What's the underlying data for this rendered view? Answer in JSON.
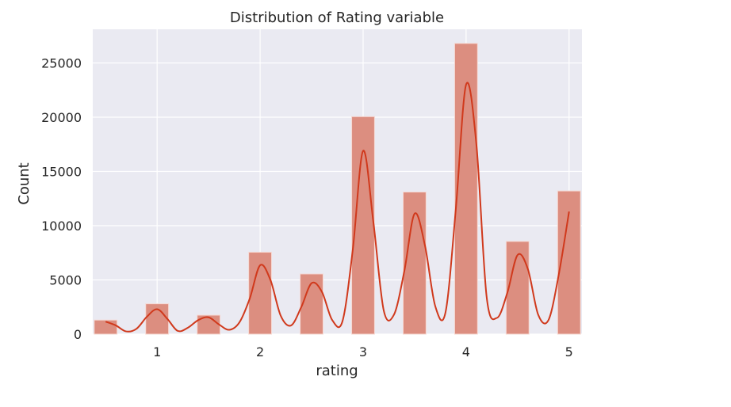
{
  "chart_data": {
    "type": "bar",
    "title": "Distribution of Rating variable",
    "xlabel": "rating",
    "ylabel": "Count",
    "xlim": [
      0.375,
      5.125
    ],
    "ylim": [
      0,
      28100
    ],
    "xticks": [
      1,
      2,
      3,
      4,
      5
    ],
    "yticks": [
      0,
      5000,
      10000,
      15000,
      20000,
      25000
    ],
    "bin_width": 0.2222,
    "bins": [
      {
        "x": 0.5,
        "count": 1300
      },
      {
        "x": 1.0,
        "count": 2800
      },
      {
        "x": 1.5,
        "count": 1750
      },
      {
        "x": 2.0,
        "count": 7550
      },
      {
        "x": 2.5,
        "count": 5550
      },
      {
        "x": 3.0,
        "count": 20050
      },
      {
        "x": 3.5,
        "count": 13100
      },
      {
        "x": 4.0,
        "count": 26800
      },
      {
        "x": 4.5,
        "count": 8550
      },
      {
        "x": 5.0,
        "count": 13200
      }
    ],
    "kde": {
      "x": [
        0.5,
        0.6,
        0.7,
        0.8,
        0.9,
        1.0,
        1.1,
        1.2,
        1.3,
        1.4,
        1.5,
        1.6,
        1.7,
        1.8,
        1.9,
        2.0,
        2.1,
        2.2,
        2.3,
        2.4,
        2.5,
        2.6,
        2.7,
        2.8,
        2.9,
        3.0,
        3.1,
        3.2,
        3.3,
        3.4,
        3.5,
        3.6,
        3.7,
        3.8,
        3.9,
        4.0,
        4.1,
        4.2,
        4.3,
        4.4,
        4.5,
        4.6,
        4.7,
        4.8,
        4.9,
        5.0
      ],
      "y": [
        1150,
        800,
        250,
        500,
        1600,
        2300,
        1400,
        300,
        600,
        1300,
        1550,
        900,
        400,
        1100,
        3300,
        6350,
        5000,
        1700,
        800,
        2500,
        4700,
        3900,
        1300,
        1200,
        7800,
        16900,
        10300,
        2200,
        1800,
        5800,
        11100,
        8200,
        2600,
        2000,
        11500,
        23000,
        17500,
        3400,
        1500,
        3800,
        7300,
        6000,
        1800,
        1300,
        5500,
        11300
      ]
    },
    "colors": {
      "bar_fill": "#dc8e80",
      "bar_edge": "#f6d9d3",
      "kde_line": "#d0391c",
      "plot_bg": "#eaeaf2",
      "grid": "#ffffff",
      "text": "#262626"
    },
    "grid": true
  }
}
